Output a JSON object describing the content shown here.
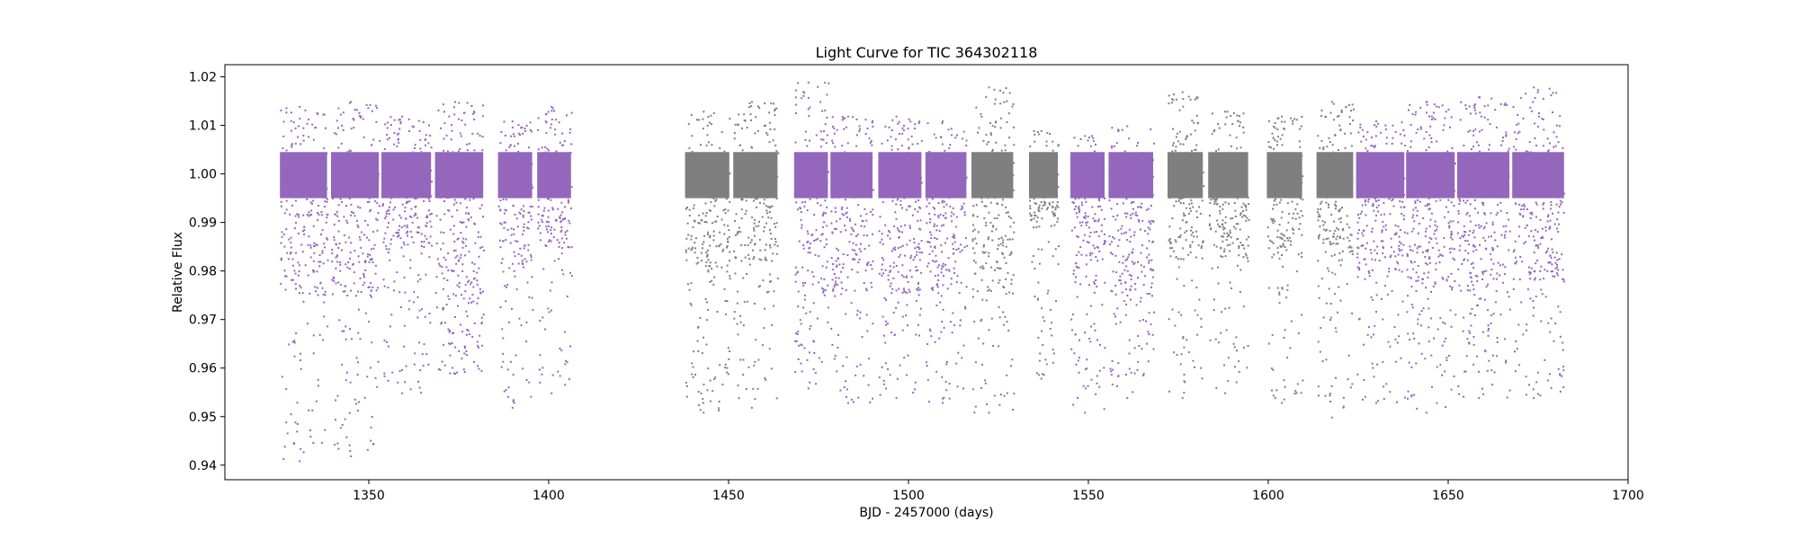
{
  "chart_data": {
    "type": "scatter",
    "title": "Light Curve for TIC 364302118",
    "xlabel": "BJD - 2457000 (days)",
    "ylabel": "Relative Flux",
    "xlim": [
      1310,
      1700
    ],
    "ylim": [
      0.937,
      1.0225
    ],
    "x_ticks": [
      {
        "value": 1350,
        "label": "1350"
      },
      {
        "value": 1400,
        "label": "1400"
      },
      {
        "value": 1450,
        "label": "1450"
      },
      {
        "value": 1500,
        "label": "1500"
      },
      {
        "value": 1550,
        "label": "1550"
      },
      {
        "value": 1600,
        "label": "1600"
      },
      {
        "value": 1650,
        "label": "1650"
      },
      {
        "value": 1700,
        "label": "1700"
      }
    ],
    "y_ticks": [
      {
        "value": 0.94,
        "label": "0.94"
      },
      {
        "value": 0.95,
        "label": "0.95"
      },
      {
        "value": 0.96,
        "label": "0.96"
      },
      {
        "value": 0.97,
        "label": "0.97"
      },
      {
        "value": 0.98,
        "label": "0.98"
      },
      {
        "value": 0.99,
        "label": "0.99"
      },
      {
        "value": 1.0,
        "label": "1.00"
      },
      {
        "value": 1.01,
        "label": "1.01"
      },
      {
        "value": 1.02,
        "label": "1.02"
      }
    ],
    "grid": false,
    "legend": "none",
    "colors": {
      "purple": "#9467bd",
      "gray": "#7f7f7f"
    },
    "series": [
      {
        "color": "purple",
        "segments": [
          {
            "x_start": 1325.3,
            "x_end": 1338.4,
            "dense_low": 0.975,
            "high": 1.014,
            "dip_min": 0.941
          },
          {
            "x_start": 1339.5,
            "x_end": 1352.8,
            "dense_low": 0.975,
            "high": 1.015,
            "dip_min": 0.942
          },
          {
            "x_start": 1353.5,
            "x_end": 1367.3,
            "dense_low": 0.985,
            "high": 1.012,
            "dip_min": 0.955
          },
          {
            "x_start": 1368.4,
            "x_end": 1381.8,
            "dense_low": 0.975,
            "high": 1.015,
            "dip_min": 0.959
          },
          {
            "x_start": 1385.9,
            "x_end": 1395.4,
            "dense_low": 0.98,
            "high": 1.011,
            "dip_min": 0.952
          },
          {
            "x_start": 1396.8,
            "x_end": 1406.2,
            "dense_low": 0.985,
            "high": 1.014,
            "dip_min": 0.955
          },
          {
            "x_start": 1468.2,
            "x_end": 1477.6,
            "dense_low": 0.975,
            "high": 1.019,
            "dip_min": 0.956
          },
          {
            "x_start": 1478.3,
            "x_end": 1490.0,
            "dense_low": 0.976,
            "high": 1.012,
            "dip_min": 0.953
          },
          {
            "x_start": 1491.6,
            "x_end": 1503.6,
            "dense_low": 0.976,
            "high": 1.012,
            "dip_min": 0.954
          },
          {
            "x_start": 1504.7,
            "x_end": 1516.1,
            "dense_low": 0.976,
            "high": 1.011,
            "dip_min": 0.953
          },
          {
            "x_start": 1545.0,
            "x_end": 1554.5,
            "dense_low": 0.977,
            "high": 1.008,
            "dip_min": 0.951
          },
          {
            "x_start": 1555.6,
            "x_end": 1568.0,
            "dense_low": 0.976,
            "high": 1.01,
            "dip_min": 0.954
          },
          {
            "x_start": 1624.4,
            "x_end": 1637.8,
            "dense_low": 0.98,
            "high": 1.011,
            "dip_min": 0.953
          },
          {
            "x_start": 1638.3,
            "x_end": 1651.8,
            "dense_low": 0.976,
            "high": 1.015,
            "dip_min": 0.951
          },
          {
            "x_start": 1652.5,
            "x_end": 1667.0,
            "dense_low": 0.976,
            "high": 1.016,
            "dip_min": 0.954
          },
          {
            "x_start": 1667.8,
            "x_end": 1682.2,
            "dense_low": 0.978,
            "high": 1.018,
            "dip_min": 0.954
          }
        ]
      },
      {
        "color": "gray",
        "segments": [
          {
            "x_start": 1437.9,
            "x_end": 1450.2,
            "dense_low": 0.98,
            "high": 1.013,
            "dip_min": 0.951
          },
          {
            "x_start": 1451.3,
            "x_end": 1463.6,
            "dense_low": 0.982,
            "high": 1.015,
            "dip_min": 0.952
          },
          {
            "x_start": 1517.5,
            "x_end": 1529.1,
            "dense_low": 0.975,
            "high": 1.018,
            "dip_min": 0.951
          },
          {
            "x_start": 1533.5,
            "x_end": 1541.5,
            "dense_low": 0.99,
            "high": 1.009,
            "dip_min": 0.958
          },
          {
            "x_start": 1572.0,
            "x_end": 1581.8,
            "dense_low": 0.982,
            "high": 1.017,
            "dip_min": 0.954
          },
          {
            "x_start": 1583.3,
            "x_end": 1594.4,
            "dense_low": 0.983,
            "high": 1.013,
            "dip_min": 0.955
          },
          {
            "x_start": 1599.6,
            "x_end": 1609.4,
            "dense_low": 0.983,
            "high": 1.012,
            "dip_min": 0.953
          },
          {
            "x_start": 1613.4,
            "x_end": 1623.6,
            "dense_low": 0.982,
            "high": 1.015,
            "dip_min": 0.95
          }
        ]
      }
    ]
  }
}
